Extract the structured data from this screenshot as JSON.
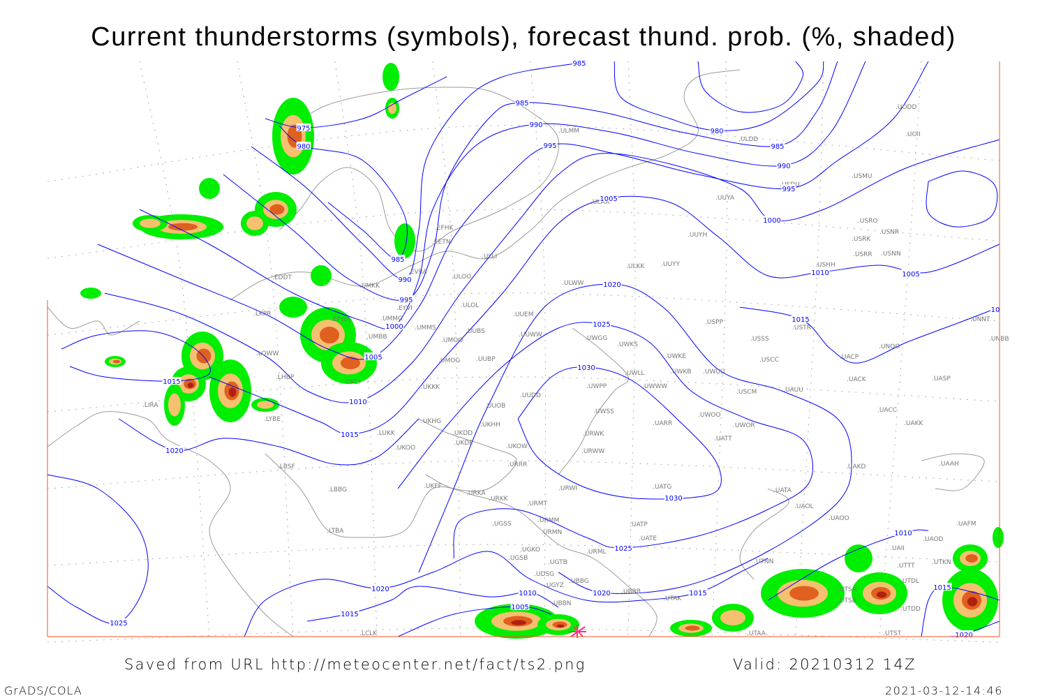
{
  "title": "Current thunderstorms (symbols), forecast thund. prob. (%, shaded)",
  "footer": {
    "source": "Saved from URL http://meteocenter.net/fact/ts2.png",
    "valid": "Valid: 20210312 14Z",
    "software": "GrADS/COLA",
    "timestamp": "2021-03-12-14:46"
  },
  "colors": {
    "isobar": "#0000ff",
    "coastline": "#9a9a9a",
    "prob_low": "#00ee00",
    "prob_mid": "#f5c070",
    "prob_high": "#e06020",
    "prob_max": "#b02010",
    "current_thunderstorm_symbol": "#ff3080"
  },
  "isobar_labels": [
    "985",
    "985",
    "975",
    "980",
    "990",
    "995",
    "980",
    "985",
    "990",
    "995",
    "1005",
    "1000",
    "985",
    "990",
    "995",
    "1000",
    "1005",
    "1010",
    "1015",
    "1020",
    "1025",
    "1030",
    "1030",
    "1010",
    "1005",
    "1015",
    "1015",
    "1020",
    "1025",
    "1020",
    "1020",
    "1015",
    "1010",
    "1005",
    "1015",
    "1025",
    "1010",
    "1015",
    "1020",
    "10"
  ],
  "stations": [
    "ULMM",
    "ULDD",
    "UODD",
    "UOII",
    "USDU",
    "USMU",
    "UUYA",
    "ULAA",
    "EFHK",
    "EETN",
    "ULLI",
    "EVRA",
    "ULOO",
    "EDDT",
    "UMKK",
    "EYVI",
    "ULOL",
    "UMMG",
    "EPWA",
    "LKPR",
    "UUEM",
    "UMMS",
    "UMOO",
    "UUBS",
    "UUWW",
    "UMBB",
    "ULWW",
    "ULKK",
    "UUYY",
    "UUYH",
    "USRO",
    "USRK",
    "USNR",
    "USRR",
    "USNN",
    "USHH",
    "USPP",
    "USSS",
    "USTR",
    "USCC",
    "UACP",
    "UNOO",
    "UNNT",
    "UNBB",
    "UWGG",
    "UWKS",
    "UWKE",
    "UWKB",
    "UWUU",
    "UMOG",
    "UUBP",
    "UKLI",
    "LOWW",
    "LHBP",
    "LIRA",
    "LYBE",
    "UKKK",
    "UUDD",
    "UWPP",
    "UWLL",
    "UWWW",
    "USCM",
    "UAUU",
    "UACK",
    "UASP",
    "UUOB",
    "UWSS",
    "UARR",
    "UWOO",
    "UWOR",
    "UATT",
    "UACC",
    "UAKK",
    "LUKK",
    "UKHH",
    "UKDD",
    "UKHG",
    "UKDE",
    "UKOO",
    "UKOW",
    "URWK",
    "URWW",
    "UAKD",
    "UAAH",
    "LBSF",
    "URRR",
    "UKFF",
    "URKA",
    "URKK",
    "URWI",
    "UATG",
    "UATA",
    "UAOL",
    "UAOO",
    "UAFM",
    "LBBG",
    "URMT",
    "URMM",
    "URMN",
    "UGSS",
    "UATE",
    "UATP",
    "LTBA",
    "UGKO",
    "UGSB",
    "URML",
    "UTNN",
    "UGTB",
    "UTAK",
    "UBBB",
    "UBBG",
    "UDSG",
    "UGYZ",
    "UBBN",
    "LCLK",
    "UTSA",
    "UTSB",
    "UTDL",
    "UTTT",
    "UTKN",
    "UAII",
    "UTDD",
    "UTST",
    "UTAA",
    "UAOD"
  ]
}
